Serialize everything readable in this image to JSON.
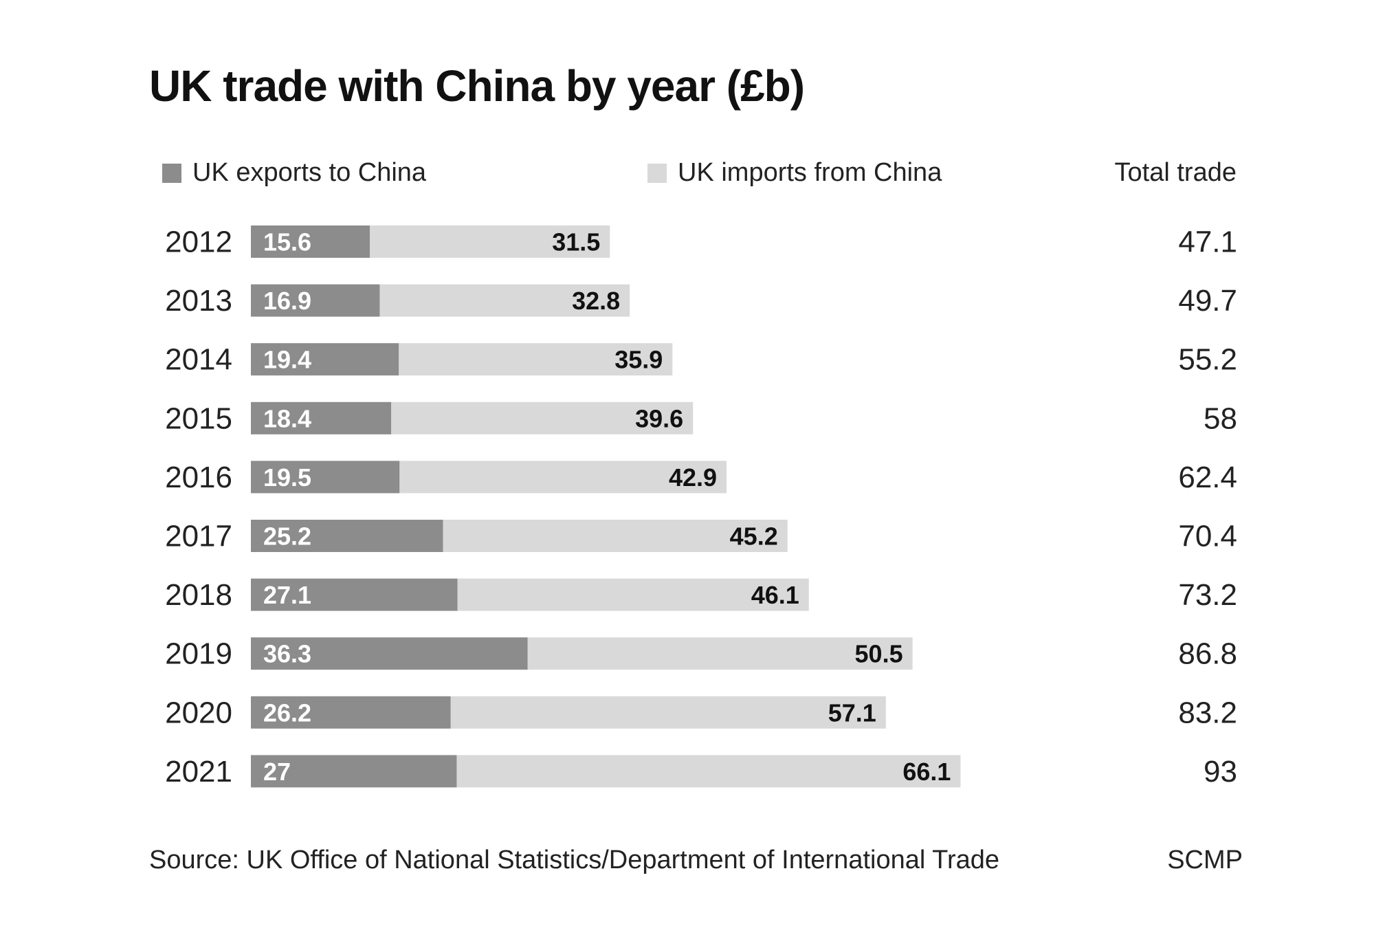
{
  "chart_data": {
    "type": "bar",
    "orientation": "horizontal",
    "stacked": true,
    "title": "UK trade with China by year (£b)",
    "categories": [
      "2012",
      "2013",
      "2014",
      "2015",
      "2016",
      "2017",
      "2018",
      "2019",
      "2020",
      "2021"
    ],
    "series": [
      {
        "name": "UK exports to China",
        "color": "#8c8c8c",
        "values": [
          15.6,
          16.9,
          19.4,
          18.4,
          19.5,
          25.2,
          27.1,
          36.3,
          26.2,
          27
        ]
      },
      {
        "name": "UK imports from China",
        "color": "#d9d9d9",
        "values": [
          31.5,
          32.8,
          35.9,
          39.6,
          42.9,
          45.2,
          46.1,
          50.5,
          57.1,
          66.1
        ]
      }
    ],
    "totals_header": "Total trade",
    "totals": [
      "47.1",
      "49.7",
      "55.2",
      "58",
      "62.4",
      "70.4",
      "73.2",
      "86.8",
      "83.2",
      "93"
    ],
    "grid": false,
    "legend": "top"
  },
  "source": "Source: UK Office of National Statistics/Department of International Trade",
  "brand": "SCMP"
}
